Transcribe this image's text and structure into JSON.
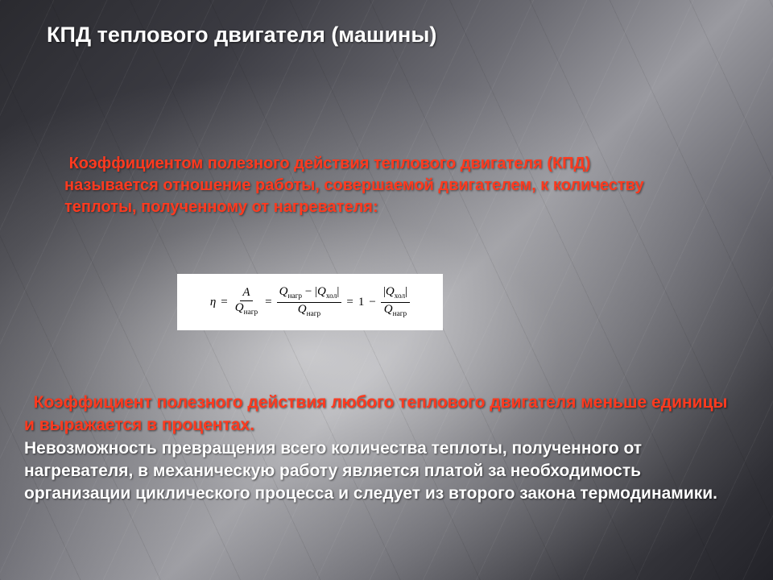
{
  "title": "КПД теплового двигателя (машины)",
  "para1": {
    "line1_hl": "Коэффициентом полезного действия теплового двигателя (КПД)",
    "line2a_hl": "называется ",
    "line2b_hl": "отношение работы, совершаемой двигателем, к количеству теплоты, полученному от нагревателя:"
  },
  "formula": {
    "eta": "η",
    "eq": "=",
    "A": "A",
    "Qnagr": "Q",
    "sub_nagr": "нагр",
    "Qxol": "Q",
    "sub_xol": "хол",
    "minus": "−",
    "one": "1",
    "abs_l": "|",
    "abs_r": "|"
  },
  "para2": {
    "hl1": "Коэффициент полезного действия любого теплового двигателя меньше единицы и выражается в процентах.",
    "rest": "Невозможность превращения всего количества теплоты, полученного от нагревателя, в механическую работу является платой за необходимость организации циклического процесса и следует из второго закона термодинамики."
  },
  "style": {
    "title_color": "#ffffff",
    "highlight_color": "#ff3a1f",
    "body_color": "#ffffff",
    "formula_bg": "#ffffff",
    "title_fontsize": 27,
    "body_fontsize": 21
  }
}
